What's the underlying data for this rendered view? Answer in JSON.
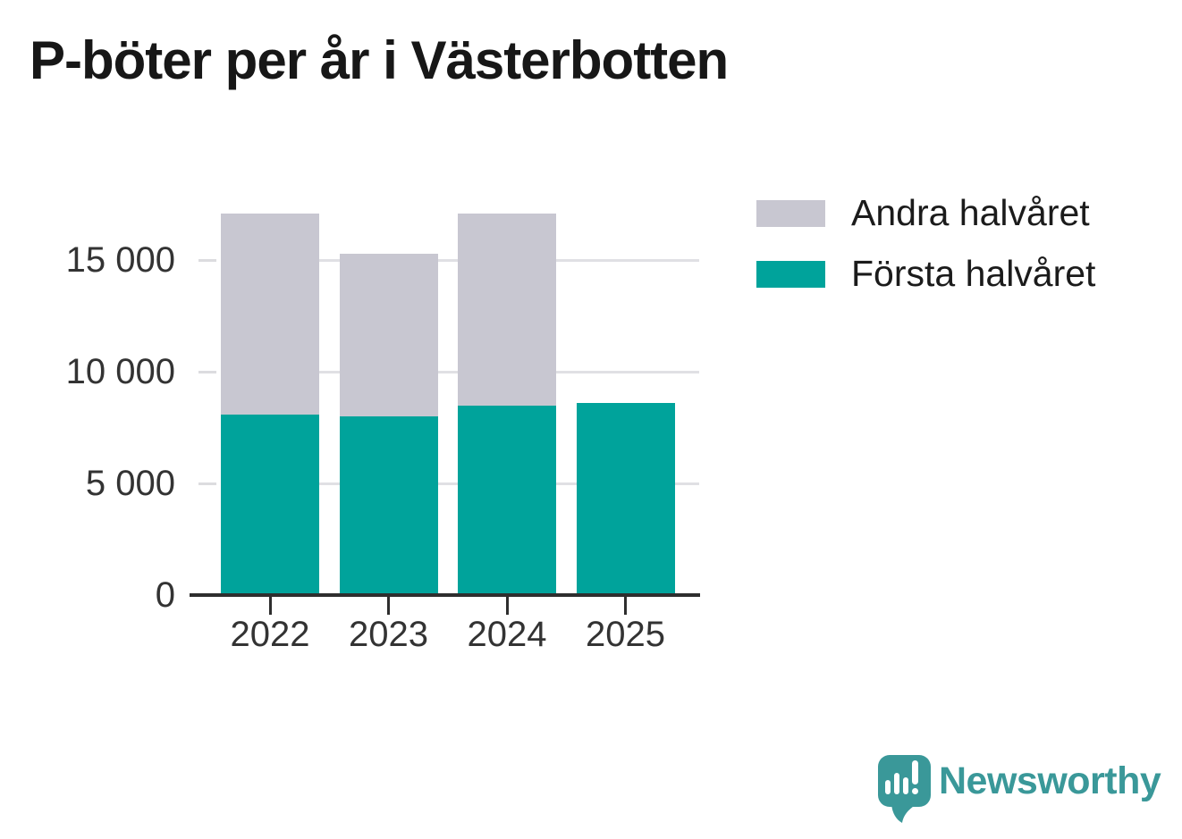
{
  "title": "P-böter per år i Västerbotten",
  "colors": {
    "first_half_teal": "#00a39b",
    "second_half_gray": "#c8c7d1",
    "axis_dark": "#2e2e2e",
    "gridline_gray": "#e0e0e4",
    "title_text": "#171717",
    "tick_label_text": "#333333",
    "brand_teal": "#3a9899"
  },
  "chart_data": {
    "type": "bar",
    "stacked": true,
    "title": "P-böter per år i Västerbotten",
    "categories": [
      "2022",
      "2023",
      "2024",
      "2025"
    ],
    "series": [
      {
        "name": "Första halvåret",
        "color": "#00a39b",
        "values": [
          8100,
          8000,
          8500,
          8600
        ]
      },
      {
        "name": "Andra halvåret",
        "color": "#c8c7d1",
        "values": [
          9000,
          7300,
          8600,
          0
        ]
      }
    ],
    "totals": [
      17100,
      15300,
      17100,
      8600
    ],
    "xlabel": "",
    "ylabel": "",
    "ylim": [
      0,
      17800
    ],
    "yticks": [
      0,
      5000,
      10000,
      15000
    ],
    "ytick_labels": [
      "0",
      "5 000",
      "10 000",
      "15 000"
    ],
    "grid": "horizontal",
    "legend_position": "top-right"
  },
  "legend": {
    "items": [
      {
        "label": "Andra halvåret",
        "color": "#c8c7d1"
      },
      {
        "label": "Första halvåret",
        "color": "#00a39b"
      }
    ]
  },
  "branding": {
    "logo_text": "Newsworthy",
    "logo_icon": "newsworthy-speech-bubble-chart-icon"
  }
}
